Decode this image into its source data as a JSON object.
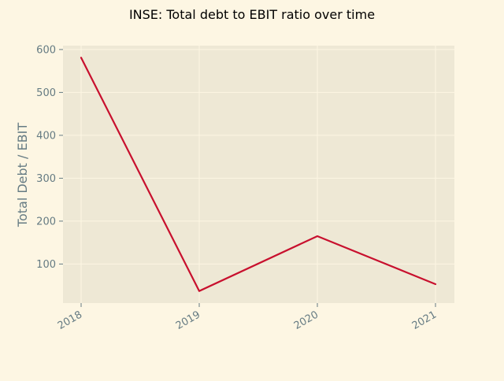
{
  "chart_data": {
    "type": "line",
    "title": "INSE: Total debt to EBIT ratio over time",
    "xlabel": "",
    "ylabel": "Total Debt / EBIT",
    "categories": [
      "2018",
      "2019",
      "2020",
      "2021"
    ],
    "series": [
      {
        "values": [
          581,
          37,
          165,
          53
        ]
      }
    ],
    "ylim": [
      9,
      609
    ],
    "yticks": [
      100,
      200,
      300,
      400,
      500,
      600
    ],
    "grid": true,
    "legend": "none",
    "colors": {
      "figure_bg": "#fdf6e3",
      "axes_bg": "#eee8d5",
      "grid": "#fdf6e3",
      "line": "#c8102e",
      "tick_text": "#657b83",
      "title_text": "#000000"
    }
  }
}
